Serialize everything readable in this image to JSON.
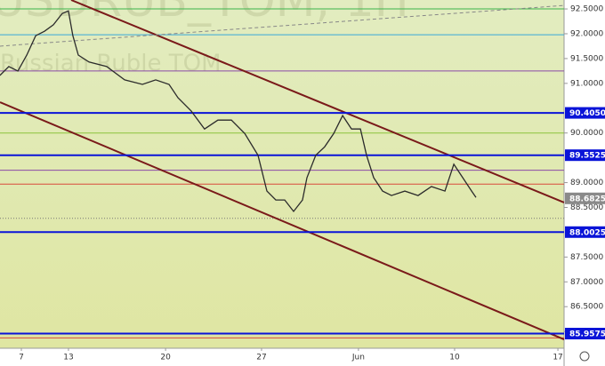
{
  "chart_data": {
    "type": "line",
    "watermark_title": "USDRUB_TOM, 1H",
    "watermark_subtitle": "Russian Ruble TOM",
    "x": [
      -1.11,
      -0.65,
      -0.18,
      0.28,
      0.74,
      1.2,
      1.66,
      2.12,
      2.44,
      2.67,
      2.95,
      3.5,
      4.42,
      5.35,
      6.27,
      6.96,
      7.65,
      8.11,
      8.8,
      9.49,
      10.18,
      10.88,
      11.57,
      12.26,
      12.72,
      13.18,
      13.64,
      14.1,
      14.56,
      14.79,
      15.25,
      15.71,
      16.18,
      16.64,
      17.1,
      17.56,
      17.88,
      18.25,
      18.71,
      19.17,
      19.86,
      20.55,
      21.24,
      21.94,
      22.4,
      22.86,
      23.32,
      23.55
    ],
    "series": [
      {
        "color": "#2b2b2b",
        "values": [
          91.16,
          91.34,
          91.25,
          91.57,
          91.96,
          92.05,
          92.18,
          92.41,
          92.46,
          91.96,
          91.57,
          91.43,
          91.34,
          91.07,
          90.98,
          91.07,
          90.98,
          90.71,
          90.44,
          90.08,
          90.26,
          90.26,
          89.99,
          89.55,
          88.83,
          88.65,
          88.65,
          88.42,
          88.65,
          89.1,
          89.55,
          89.72,
          89.99,
          90.35,
          90.08,
          90.08,
          89.55,
          89.1,
          88.83,
          88.74,
          88.83,
          88.74,
          88.92,
          88.83,
          89.37,
          89.1,
          88.83,
          88.7
        ]
      }
    ],
    "xlim": [
      -1.106,
      28.11
    ],
    "xticks": [
      {
        "value": 0,
        "label": "7"
      },
      {
        "value": 2.44,
        "label": "13"
      },
      {
        "value": 7.47,
        "label": "20"
      },
      {
        "value": 12.44,
        "label": "27"
      },
      {
        "value": 17.46,
        "label": "Jun"
      },
      {
        "value": 22.44,
        "label": "10"
      },
      {
        "value": 27.79,
        "label": "17"
      }
    ],
    "ylim": [
      85.34,
      92.68
    ],
    "yticks": [
      {
        "value": 92.5,
        "label": "92.5000"
      },
      {
        "value": 92,
        "label": "92.0000"
      },
      {
        "value": 91.5,
        "label": "91.5000"
      },
      {
        "value": 91,
        "label": "91.0000"
      },
      {
        "value": 90,
        "label": "90.0000"
      },
      {
        "value": 89,
        "label": "89.0000"
      },
      {
        "value": 88.5,
        "label": "88.5000"
      },
      {
        "value": 87.5,
        "label": "87.5000"
      },
      {
        "value": 87,
        "label": "87.0000"
      },
      {
        "value": 86.5,
        "label": "86.5000"
      },
      {
        "value": 86,
        "label": "86.0000"
      }
    ],
    "levels": [
      {
        "value": 90.405,
        "label": "90.4050",
        "color": "#0a14d8"
      },
      {
        "value": 89.5525,
        "label": "89.5525",
        "color": "#0a14d8"
      },
      {
        "value": 88.0025,
        "label": "88.0025",
        "color": "#0a14d8"
      },
      {
        "value": 85.9575,
        "label": "85.9575",
        "color": "#0a14d8"
      }
    ],
    "thin_levels": [
      {
        "value": 92.5,
        "color": "#3cb44b"
      },
      {
        "value": 91.98,
        "color": "#38a8d8"
      },
      {
        "value": 91.25,
        "color": "#8a4aa8"
      },
      {
        "value": 90,
        "color": "#8cc43c"
      },
      {
        "value": 89.25,
        "color": "#8a4aa8"
      },
      {
        "value": 88.97,
        "color": "#d84a3a"
      },
      {
        "value": 85.87,
        "color": "#d84a3a"
      }
    ],
    "dotted_level": 88.28,
    "current_price": {
      "value": 88.6825,
      "label": "88.6825"
    },
    "trend_lines": [
      {
        "x": [
          2.58,
          28.11
        ],
        "y": [
          92.68,
          88.6
        ],
        "color": "#7a1a1a",
        "dash": false
      },
      {
        "x": [
          -1.106,
          28.11
        ],
        "y": [
          90.62,
          85.84
        ],
        "color": "#7a1a1a",
        "dash": false
      },
      {
        "x": [
          -1.106,
          28.11
        ],
        "y": [
          91.75,
          92.57
        ],
        "color": "#888",
        "dash": true
      }
    ]
  }
}
